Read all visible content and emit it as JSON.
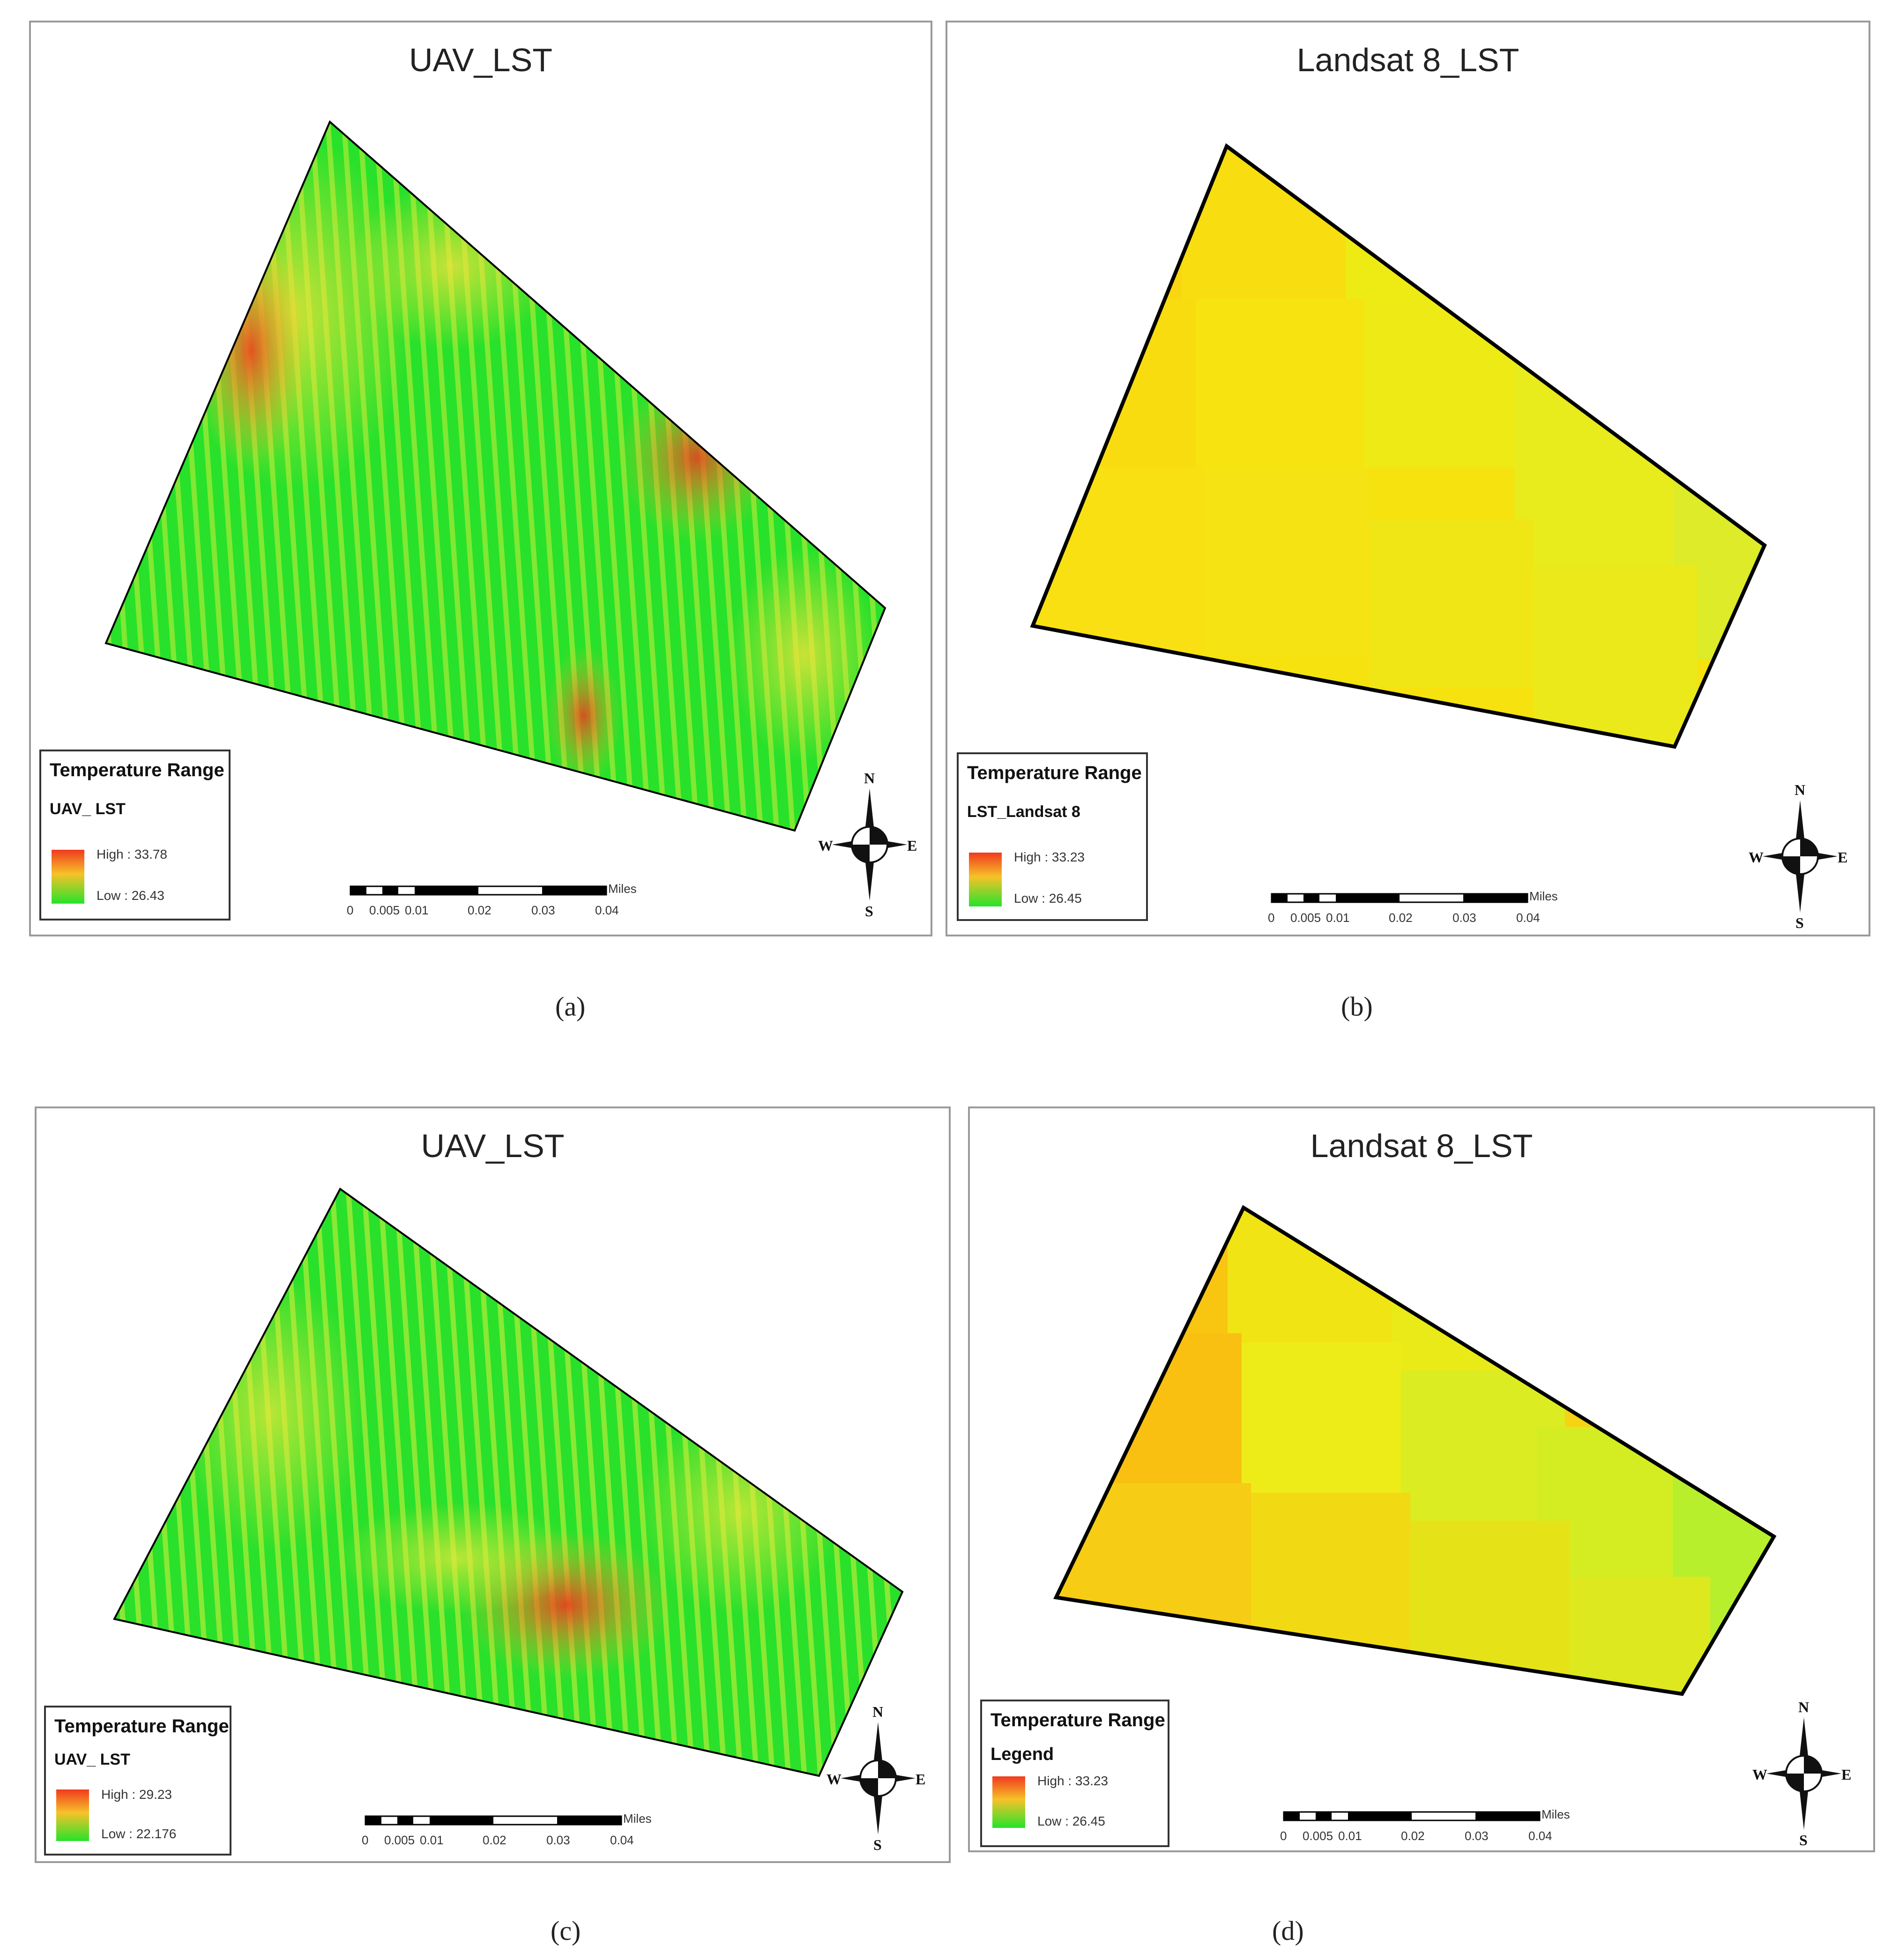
{
  "panels": [
    {
      "id": "a",
      "title": "UAV_LST",
      "caption": "(a)",
      "legend": {
        "title": "Temperature Range",
        "layer": "UAV_ LST",
        "high": "High : 33.78",
        "low": "Low : 26.43"
      },
      "scale": {
        "ticks": [
          "0",
          "0.005",
          "0.01",
          "0.02",
          "0.03",
          "0.04"
        ],
        "unit": "Miles"
      },
      "compass": {
        "n": "N",
        "s": "S",
        "e": "E",
        "w": "W"
      }
    },
    {
      "id": "b",
      "title": "Landsat 8_LST",
      "caption": "(b)",
      "legend": {
        "title": "Temperature Range",
        "layer": "LST_Landsat 8",
        "high": "High : 33.23",
        "low": "Low : 26.45"
      },
      "scale": {
        "ticks": [
          "0",
          "0.005",
          "0.01",
          "0.02",
          "0.03",
          "0.04"
        ],
        "unit": "Miles"
      },
      "compass": {
        "n": "N",
        "s": "S",
        "e": "E",
        "w": "W"
      }
    },
    {
      "id": "c",
      "title": "UAV_LST",
      "caption": "(c)",
      "legend": {
        "title": "Temperature Range",
        "layer": "UAV_ LST",
        "high": "High : 29.23",
        "low": "Low : 22.176"
      },
      "scale": {
        "ticks": [
          "0",
          "0.005",
          "0.01",
          "0.02",
          "0.03",
          "0.04"
        ],
        "unit": "Miles"
      },
      "compass": {
        "n": "N",
        "s": "S",
        "e": "E",
        "w": "W"
      }
    },
    {
      "id": "d",
      "title": "Landsat 8_LST",
      "caption": "(d)",
      "legend": {
        "title": "Temperature Range",
        "layer": "Legend",
        "high": "High : 33.23",
        "low": "Low : 26.45"
      },
      "scale": {
        "ticks": [
          "0",
          "0.005",
          "0.01",
          "0.02",
          "0.03",
          "0.04"
        ],
        "unit": "Miles"
      },
      "compass": {
        "n": "N",
        "s": "S",
        "e": "E",
        "w": "W"
      }
    }
  ],
  "colors": {
    "high": "#f03a1e",
    "mid": "#f7c229",
    "low": "#25e32a",
    "field_outline": "#000000"
  }
}
